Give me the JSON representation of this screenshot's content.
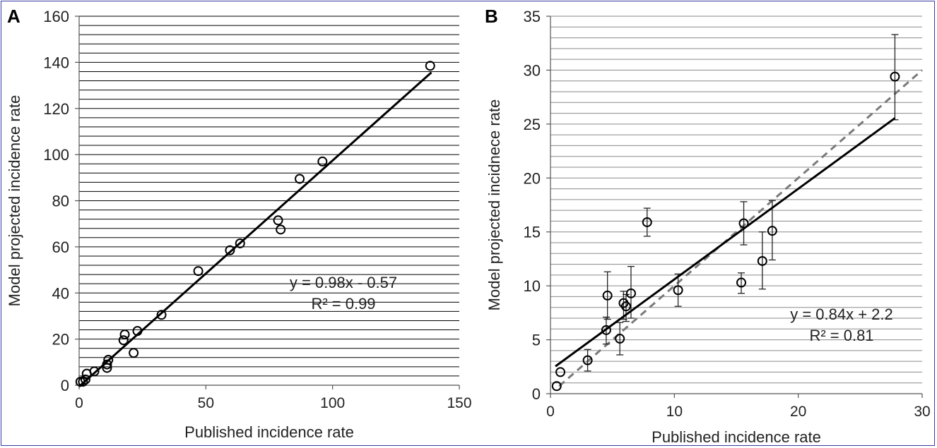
{
  "chart_data": [
    {
      "panel": "A",
      "type": "scatter",
      "xlabel": "Published incidence rate",
      "ylabel": "Model projected incidence rate",
      "xlim": [
        0,
        150
      ],
      "ylim": [
        0,
        160
      ],
      "xticks": [
        0,
        50,
        100,
        150
      ],
      "yticks": [
        0,
        20,
        40,
        60,
        80,
        100,
        120,
        140,
        160
      ],
      "grid": "horizontal minor lines every 4",
      "points": [
        {
          "x": 0.5,
          "y": 1.5
        },
        {
          "x": 1.5,
          "y": 1.5
        },
        {
          "x": 2.5,
          "y": 2.5
        },
        {
          "x": 3,
          "y": 5
        },
        {
          "x": 6,
          "y": 6
        },
        {
          "x": 11,
          "y": 7.5
        },
        {
          "x": 11,
          "y": 9
        },
        {
          "x": 11.5,
          "y": 11
        },
        {
          "x": 17.5,
          "y": 19.5
        },
        {
          "x": 18,
          "y": 22
        },
        {
          "x": 21.5,
          "y": 14
        },
        {
          "x": 23,
          "y": 23.5
        },
        {
          "x": 32.5,
          "y": 30.5
        },
        {
          "x": 47,
          "y": 49.5
        },
        {
          "x": 59.5,
          "y": 58.5
        },
        {
          "x": 63.5,
          "y": 61.5
        },
        {
          "x": 78.5,
          "y": 71.5
        },
        {
          "x": 79.5,
          "y": 67.5
        },
        {
          "x": 87,
          "y": 89.5
        },
        {
          "x": 96,
          "y": 97
        },
        {
          "x": 138.5,
          "y": 138.5
        }
      ],
      "fit_line": {
        "slope": 0.98,
        "intercept": -0.57,
        "x_range": [
          0,
          139
        ]
      },
      "annotation": [
        "y = 0.98x - 0.57",
        "R² = 0.99"
      ]
    },
    {
      "panel": "B",
      "type": "scatter",
      "xlabel": "Published incidence rate",
      "ylabel": "Model projected incidnece rate",
      "xlim": [
        0,
        30
      ],
      "ylim": [
        0,
        35
      ],
      "xticks": [
        0,
        10,
        20,
        30
      ],
      "yticks": [
        0,
        5,
        10,
        15,
        20,
        25,
        30,
        35
      ],
      "grid": "horizontal minor lines every 1",
      "points": [
        {
          "x": 0.5,
          "y": 0.7,
          "err": [
            0.7,
            0.7
          ]
        },
        {
          "x": 0.8,
          "y": 2.0,
          "err": [
            2.0,
            2.0
          ]
        },
        {
          "x": 3.0,
          "y": 3.1,
          "err": [
            2.1,
            4.1
          ]
        },
        {
          "x": 4.5,
          "y": 5.9,
          "err": [
            4.6,
            7.1
          ]
        },
        {
          "x": 4.6,
          "y": 9.1,
          "err": [
            6.9,
            11.3
          ]
        },
        {
          "x": 5.6,
          "y": 5.1,
          "err": [
            3.6,
            6.6
          ]
        },
        {
          "x": 5.9,
          "y": 8.4,
          "err": [
            6.9,
            9.5
          ]
        },
        {
          "x": 6.1,
          "y": 8.1,
          "err": [
            6.7,
            9.2
          ]
        },
        {
          "x": 6.5,
          "y": 9.3,
          "err": [
            7.0,
            11.8
          ]
        },
        {
          "x": 7.8,
          "y": 15.9,
          "err": [
            14.6,
            17.2
          ]
        },
        {
          "x": 10.3,
          "y": 9.6,
          "err": [
            8.1,
            11.1
          ]
        },
        {
          "x": 15.4,
          "y": 10.3,
          "err": [
            9.3,
            11.2
          ]
        },
        {
          "x": 15.6,
          "y": 15.8,
          "err": [
            13.8,
            17.8
          ]
        },
        {
          "x": 17.1,
          "y": 12.3,
          "err": [
            9.7,
            15.0
          ]
        },
        {
          "x": 17.9,
          "y": 15.1,
          "err": [
            12.4,
            17.9
          ]
        },
        {
          "x": 27.8,
          "y": 29.4,
          "err": [
            25.4,
            33.3
          ]
        }
      ],
      "fit_line": {
        "slope": 0.84,
        "intercept": 2.2,
        "x_range": [
          0.4,
          27.8
        ]
      },
      "identity_line": {
        "style": "dashed",
        "x_range": [
          0.7,
          30
        ]
      },
      "annotation": [
        "y = 0.84x + 2.2",
        "R² = 0.81"
      ]
    }
  ]
}
